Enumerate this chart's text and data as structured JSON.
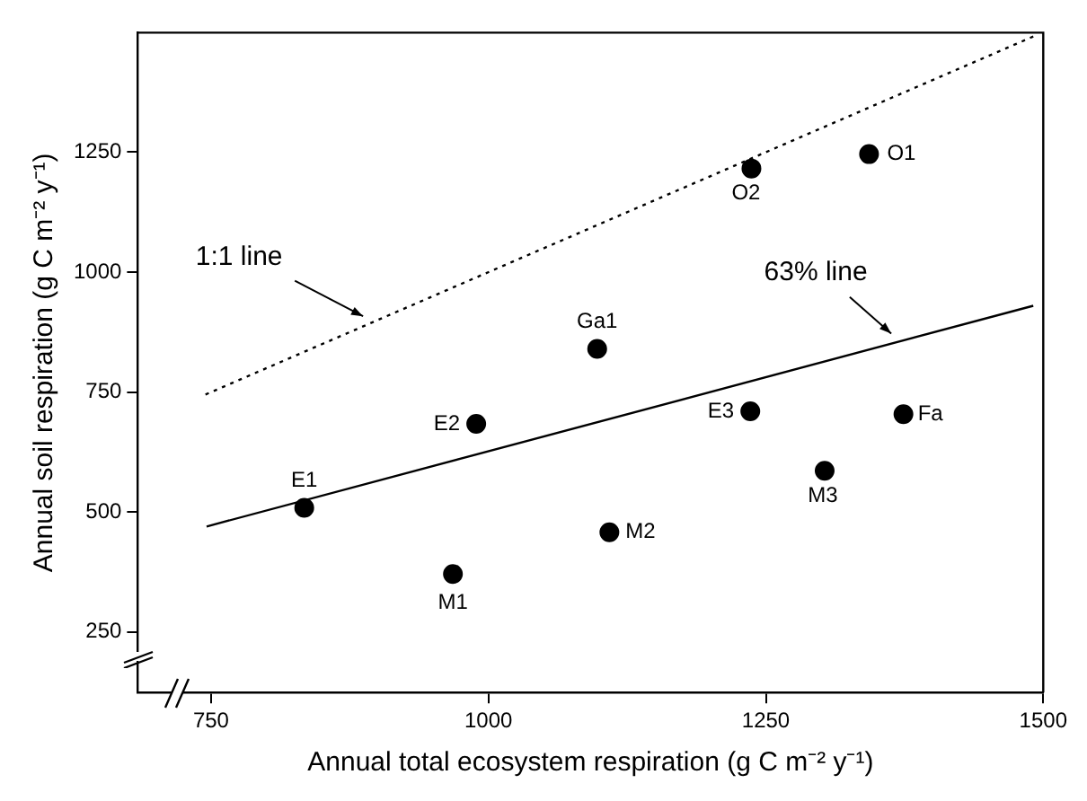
{
  "chart_data": {
    "type": "scatter",
    "xlabel": "Annual total ecosystem respiration (g C m⁻² y⁻¹)",
    "ylabel": "Annual soil respiration (g C m⁻² y⁻¹)",
    "xlim": [
      684,
      1500
    ],
    "xticks": [
      750,
      1000,
      1250,
      1500
    ],
    "ylim": [
      124,
      1499
    ],
    "yticks": [
      250,
      500,
      750,
      1000,
      1250
    ],
    "grid": false,
    "legend": false,
    "series": [
      {
        "type": "scatter",
        "color": "#000000",
        "marker": "circle",
        "x": [
          834,
          968,
          989,
          1098,
          1109,
          1236,
          1237,
          1303,
          1343,
          1374
        ],
        "values": [
          509,
          371,
          684,
          840,
          458,
          710,
          1216,
          586,
          1246,
          704
        ]
      },
      {
        "type": "line",
        "color": "#000000",
        "line_style": "dotted",
        "marker": "none",
        "x": [
          745,
          1495
        ],
        "values": [
          745,
          1495
        ]
      },
      {
        "type": "line",
        "color": "#000000",
        "line_style": "solid",
        "marker": "none",
        "x": [
          746,
          1491
        ],
        "values": [
          470,
          930
        ]
      }
    ],
    "annotations": [
      {
        "text": "E1",
        "x": 834,
        "y": 509
      },
      {
        "text": "M1",
        "x": 968,
        "y": 371
      },
      {
        "text": "E2",
        "x": 989,
        "y": 684
      },
      {
        "text": "Ga1",
        "x": 1098,
        "y": 840
      },
      {
        "text": "M2",
        "x": 1109,
        "y": 458
      },
      {
        "text": "E3",
        "x": 1236,
        "y": 710
      },
      {
        "text": "O2",
        "x": 1237,
        "y": 1216
      },
      {
        "text": "M3",
        "x": 1303,
        "y": 586
      },
      {
        "text": "O1",
        "x": 1343,
        "y": 1246
      },
      {
        "text": "Fa",
        "x": 1374,
        "y": 704
      },
      {
        "text": "1:1 line",
        "x": 887,
        "y": 908
      },
      {
        "text": "63% line",
        "x": 1363,
        "y": 872
      }
    ]
  }
}
